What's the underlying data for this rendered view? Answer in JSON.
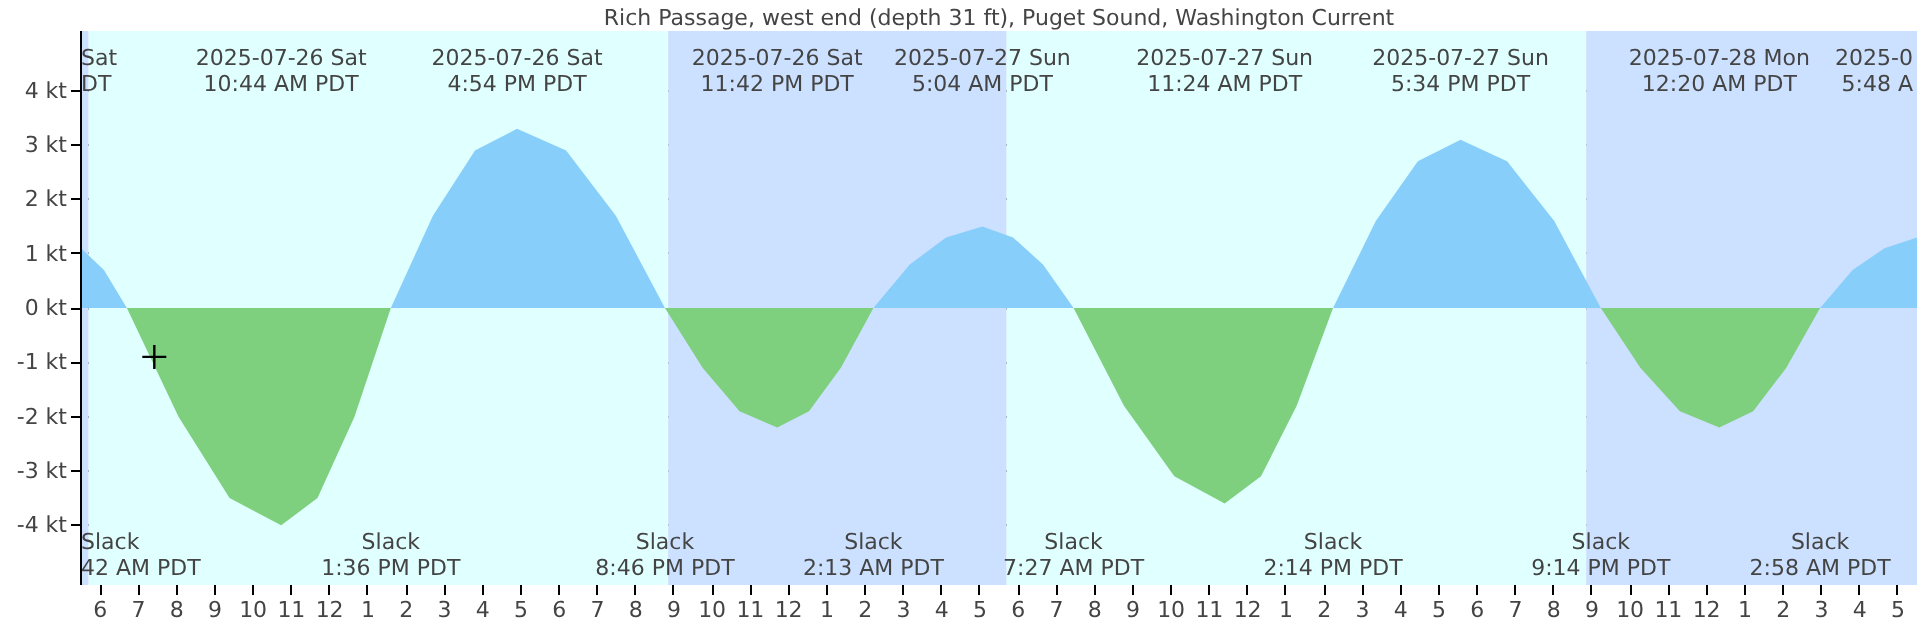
{
  "chart_data": {
    "type": "area",
    "title": "Rich Passage, west end (depth 31 ft), Puget Sound, Washington Current",
    "xlim": [
      "2025-07-26T05:30",
      "2025-07-28T05:30"
    ],
    "xticks": [
      {
        "value": "2025-07-26T06:00",
        "label": "6"
      },
      {
        "value": "2025-07-26T07:00",
        "label": "7"
      },
      {
        "value": "2025-07-26T08:00",
        "label": "8"
      },
      {
        "value": "2025-07-26T09:00",
        "label": "9"
      },
      {
        "value": "2025-07-26T10:00",
        "label": "10"
      },
      {
        "value": "2025-07-26T11:00",
        "label": "11"
      },
      {
        "value": "2025-07-26T12:00",
        "label": "12"
      },
      {
        "value": "2025-07-26T13:00",
        "label": "1"
      },
      {
        "value": "2025-07-26T14:00",
        "label": "2"
      },
      {
        "value": "2025-07-26T15:00",
        "label": "3"
      },
      {
        "value": "2025-07-26T16:00",
        "label": "4"
      },
      {
        "value": "2025-07-26T17:00",
        "label": "5"
      },
      {
        "value": "2025-07-26T18:00",
        "label": "6"
      },
      {
        "value": "2025-07-26T19:00",
        "label": "7"
      },
      {
        "value": "2025-07-26T20:00",
        "label": "8"
      },
      {
        "value": "2025-07-26T21:00",
        "label": "9"
      },
      {
        "value": "2025-07-26T22:00",
        "label": "10"
      },
      {
        "value": "2025-07-26T23:00",
        "label": "11"
      },
      {
        "value": "2025-07-27T00:00",
        "label": "12"
      },
      {
        "value": "2025-07-27T01:00",
        "label": "1"
      },
      {
        "value": "2025-07-27T02:00",
        "label": "2"
      },
      {
        "value": "2025-07-27T03:00",
        "label": "3"
      },
      {
        "value": "2025-07-27T04:00",
        "label": "4"
      },
      {
        "value": "2025-07-27T05:00",
        "label": "5"
      },
      {
        "value": "2025-07-27T06:00",
        "label": "6"
      },
      {
        "value": "2025-07-27T07:00",
        "label": "7"
      },
      {
        "value": "2025-07-27T08:00",
        "label": "8"
      },
      {
        "value": "2025-07-27T09:00",
        "label": "9"
      },
      {
        "value": "2025-07-27T10:00",
        "label": "10"
      },
      {
        "value": "2025-07-27T11:00",
        "label": "11"
      },
      {
        "value": "2025-07-27T12:00",
        "label": "12"
      },
      {
        "value": "2025-07-27T13:00",
        "label": "1"
      },
      {
        "value": "2025-07-27T14:00",
        "label": "2"
      },
      {
        "value": "2025-07-27T15:00",
        "label": "3"
      },
      {
        "value": "2025-07-27T16:00",
        "label": "4"
      },
      {
        "value": "2025-07-27T17:00",
        "label": "5"
      },
      {
        "value": "2025-07-27T18:00",
        "label": "6"
      },
      {
        "value": "2025-07-27T19:00",
        "label": "7"
      },
      {
        "value": "2025-07-27T20:00",
        "label": "8"
      },
      {
        "value": "2025-07-27T21:00",
        "label": "9"
      },
      {
        "value": "2025-07-27T22:00",
        "label": "10"
      },
      {
        "value": "2025-07-27T23:00",
        "label": "11"
      },
      {
        "value": "2025-07-28T00:00",
        "label": "12"
      },
      {
        "value": "2025-07-28T01:00",
        "label": "1"
      },
      {
        "value": "2025-07-28T02:00",
        "label": "2"
      },
      {
        "value": "2025-07-28T03:00",
        "label": "3"
      },
      {
        "value": "2025-07-28T04:00",
        "label": "4"
      },
      {
        "value": "2025-07-28T05:00",
        "label": "5"
      }
    ],
    "ylim": [
      -5.1,
      5.1
    ],
    "yticks": [
      {
        "value": 4,
        "label": "4 kt"
      },
      {
        "value": 3,
        "label": "3 kt"
      },
      {
        "value": 2,
        "label": "2 kt"
      },
      {
        "value": 1,
        "label": "1 kt"
      },
      {
        "value": 0,
        "label": "0 kt"
      },
      {
        "value": -1,
        "label": "-1 kt"
      },
      {
        "value": -2,
        "label": "-2 kt"
      },
      {
        "value": -3,
        "label": "-3 kt"
      },
      {
        "value": -4,
        "label": "-4 kt"
      }
    ],
    "grid": "y",
    "series": [
      {
        "color": "#87cefa",
        "x": [
          "2025-07-26T05:30",
          "2025-07-26T06:06",
          "2025-07-26T06:42",
          "2025-07-26T13:36",
          "2025-07-26T14:42",
          "2025-07-26T15:48",
          "2025-07-26T16:54",
          "2025-07-26T18:11",
          "2025-07-26T19:29",
          "2025-07-26T20:46",
          "2025-07-27T02:13",
          "2025-07-27T03:10",
          "2025-07-27T04:07",
          "2025-07-27T05:04",
          "2025-07-27T05:52",
          "2025-07-27T06:39",
          "2025-07-27T07:27",
          "2025-07-27T14:14",
          "2025-07-27T15:21",
          "2025-07-27T16:27",
          "2025-07-27T17:34",
          "2025-07-27T18:47",
          "2025-07-27T20:01",
          "2025-07-27T21:14",
          "2025-07-28T02:58",
          "2025-07-28T03:49",
          "2025-07-28T04:39",
          "2025-07-28T05:30"
        ],
        "values": [
          1.1,
          0.7,
          0,
          0,
          1.7,
          2.9,
          3.3,
          2.9,
          1.7,
          0,
          0,
          0.8,
          1.3,
          1.5,
          1.3,
          0.8,
          0,
          0,
          1.6,
          2.7,
          3.1,
          2.7,
          1.6,
          0,
          0,
          0.7,
          1.1,
          1.3
        ]
      },
      {
        "color": "#7ecf7e",
        "x": [
          "2025-07-26T06:42",
          "2025-07-26T08:03",
          "2025-07-26T09:23",
          "2025-07-26T10:44",
          "2025-07-26T11:41",
          "2025-07-26T12:39",
          "2025-07-26T13:36",
          "2025-07-26T20:46",
          "2025-07-26T21:45",
          "2025-07-26T22:43",
          "2025-07-26T23:42",
          "2025-07-27T00:32",
          "2025-07-27T01:22",
          "2025-07-27T02:13",
          "2025-07-27T07:27",
          "2025-07-27T08:46",
          "2025-07-27T10:05",
          "2025-07-27T11:24",
          "2025-07-27T12:21",
          "2025-07-27T13:17",
          "2025-07-27T14:14",
          "2025-07-27T21:14",
          "2025-07-27T22:16",
          "2025-07-27T23:18",
          "2025-07-28T00:20",
          "2025-07-28T01:13",
          "2025-07-28T02:05",
          "2025-07-28T02:58"
        ],
        "values": [
          0,
          -2.0,
          -3.5,
          -4.0,
          -3.5,
          -2.0,
          0,
          0,
          -1.1,
          -1.9,
          -2.2,
          -1.9,
          -1.1,
          0,
          0,
          -1.8,
          -3.1,
          -3.6,
          -3.1,
          -1.8,
          0,
          0,
          -1.1,
          -1.9,
          -2.2,
          -1.9,
          -1.1,
          0
        ]
      },
      {
        "type": "scatter",
        "marker": "cross",
        "color": "#000000",
        "x": [
          "2025-07-26T07:25"
        ],
        "values": [
          -0.9
        ]
      }
    ],
    "bands": [
      {
        "axis": "x",
        "from": "2025-07-26T05:30",
        "to": "2025-07-26T05:42",
        "color": "#cce0ff"
      },
      {
        "axis": "x",
        "from": "2025-07-26T05:42",
        "to": "2025-07-26T20:51",
        "color": "#e0ffff"
      },
      {
        "axis": "x",
        "from": "2025-07-26T20:51",
        "to": "2025-07-27T05:42",
        "color": "#cce0ff"
      },
      {
        "axis": "x",
        "from": "2025-07-27T05:42",
        "to": "2025-07-27T20:51",
        "color": "#e0ffff"
      },
      {
        "axis": "x",
        "from": "2025-07-27T20:51",
        "to": "2025-07-28T05:30",
        "color": "#cce0ff"
      }
    ],
    "annotations": [
      "Sat\nDT",
      "2025-0\n5:48 A",
      "2025-07-26 Sat\n10:44 AM PDT",
      "2025-07-26 Sat\n4:54 PM PDT",
      "2025-07-26 Sat\n11:42 PM PDT",
      "2025-07-27 Sun\n5:04 AM PDT",
      "2025-07-27 Sun\n11:24 AM PDT",
      "2025-07-27 Sun\n5:34 PM PDT",
      "2025-07-28 Mon\n12:20 AM PDT",
      "Slack\n42 AM PDT",
      "Slack\n1:36 PM PDT",
      "Slack\n8:46 PM PDT",
      "Slack\n2:13 AM PDT",
      "Slack\n7:27 AM PDT",
      "Slack\n2:14 PM PDT",
      "Slack\n9:14 PM PDT",
      "Slack\n2:58 AM PDT"
    ]
  }
}
